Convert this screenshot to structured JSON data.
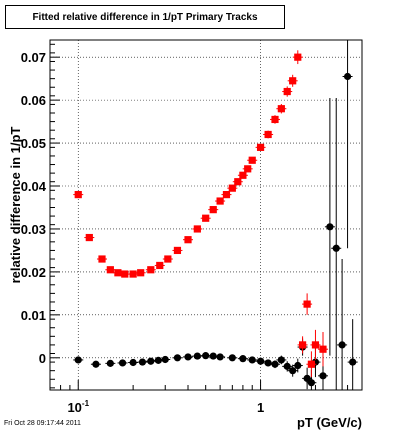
{
  "chart_data": {
    "type": "scatter",
    "title": "Fitted relative difference in 1/pT  Primary Tracks",
    "xlabel": "pT (GeV/c)",
    "ylabel": "relative difference in 1/pT",
    "xscale": "log",
    "xlim": [
      0.07,
      3.6
    ],
    "ylim": [
      -0.0075,
      0.074
    ],
    "grid": true,
    "x_tick_labels": [
      {
        "value": 0.1,
        "base": "10",
        "exp": "-1"
      },
      {
        "value": 1,
        "base": "1",
        "exp": ""
      }
    ],
    "y_ticks": [
      0,
      0.01,
      0.02,
      0.03,
      0.04,
      0.05,
      0.06,
      0.07
    ],
    "y_tick_labels": [
      "0",
      "0.01",
      "0.02",
      "0.03",
      "0.04",
      "0.05",
      "0.06",
      "0.07"
    ],
    "series": [
      {
        "color": "#000000",
        "marker": "circle",
        "x": [
          0.1,
          0.125,
          0.15,
          0.175,
          0.2,
          0.225,
          0.25,
          0.275,
          0.3,
          0.35,
          0.4,
          0.45,
          0.5,
          0.55,
          0.6,
          0.7,
          0.8,
          0.9,
          1.0,
          1.1,
          1.2,
          1.3,
          1.4,
          1.5,
          1.6,
          1.7,
          1.8,
          1.9,
          2.0,
          2.2,
          2.4,
          2.6,
          2.8,
          3.0,
          3.2
        ],
        "y": [
          -0.0005,
          -0.0015,
          -0.0013,
          -0.0012,
          -0.0011,
          -0.001,
          -0.0008,
          -0.0006,
          -0.0004,
          0.0,
          0.0002,
          0.0004,
          0.0005,
          0.0004,
          0.0002,
          0.0,
          -0.0002,
          -0.0005,
          -0.0008,
          -0.0012,
          -0.0015,
          -0.0005,
          -0.002,
          -0.003,
          -0.0018,
          0.0025,
          -0.0048,
          -0.0058,
          -0.001,
          -0.0042,
          0.0305,
          0.0255,
          0.003,
          0.0655,
          -0.001
        ],
        "yerr": [
          0.0004,
          0.0004,
          0.0004,
          0.0004,
          0.0004,
          0.0004,
          0.0004,
          0.0004,
          0.0004,
          0.0004,
          0.0004,
          0.0004,
          0.0004,
          0.0004,
          0.0005,
          0.0005,
          0.0006,
          0.0006,
          0.0007,
          0.0008,
          0.0009,
          0.001,
          0.0012,
          0.0014,
          0.0016,
          0.002,
          0.0025,
          0.003,
          0.0035,
          0.007,
          0.03,
          0.035,
          0.02,
          0.04,
          0.01
        ]
      },
      {
        "color": "#ff0000",
        "marker": "square",
        "x": [
          0.1,
          0.115,
          0.135,
          0.15,
          0.165,
          0.18,
          0.2,
          0.22,
          0.25,
          0.28,
          0.31,
          0.35,
          0.4,
          0.45,
          0.5,
          0.55,
          0.6,
          0.65,
          0.7,
          0.75,
          0.8,
          0.85,
          0.9,
          1.0,
          1.1,
          1.2,
          1.3,
          1.4,
          1.5,
          1.6,
          1.7,
          1.8,
          1.9,
          2.0,
          2.2
        ],
        "y": [
          0.038,
          0.028,
          0.023,
          0.0205,
          0.0198,
          0.0195,
          0.0195,
          0.0198,
          0.0205,
          0.0215,
          0.023,
          0.025,
          0.0275,
          0.03,
          0.0325,
          0.0345,
          0.0365,
          0.038,
          0.0395,
          0.041,
          0.0425,
          0.044,
          0.046,
          0.049,
          0.052,
          0.0555,
          0.058,
          0.062,
          0.0645,
          0.07,
          0.003,
          0.0125,
          -0.0015,
          0.003,
          0.002
        ],
        "yerr": [
          0.0004,
          0.0004,
          0.0004,
          0.0004,
          0.0004,
          0.0004,
          0.0004,
          0.0004,
          0.0004,
          0.0004,
          0.0004,
          0.0004,
          0.0004,
          0.0005,
          0.0005,
          0.0005,
          0.0005,
          0.0005,
          0.0006,
          0.0006,
          0.0006,
          0.0007,
          0.0007,
          0.0008,
          0.0009,
          0.001,
          0.0011,
          0.0012,
          0.0014,
          0.0016,
          0.002,
          0.0025,
          0.003,
          0.0035,
          0.004
        ]
      }
    ]
  },
  "footer": {
    "timestamp": "Fri Oct 28 09:17:44 2011"
  }
}
